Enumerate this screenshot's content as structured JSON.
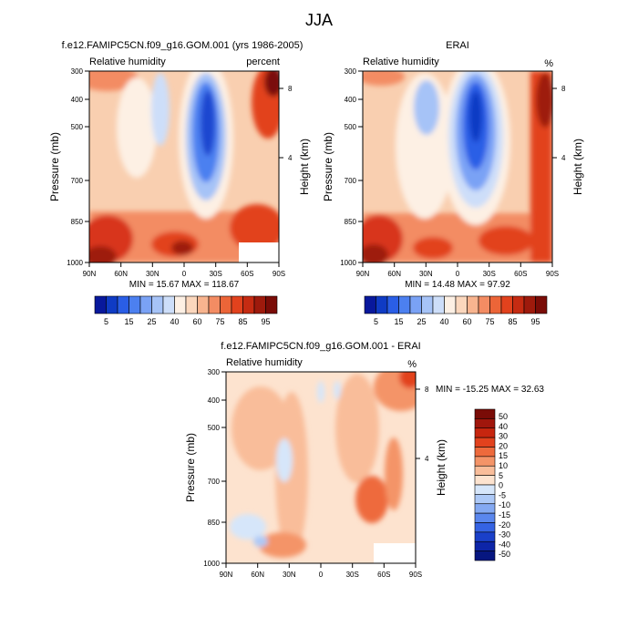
{
  "figure_title": "JJA",
  "chart_data": [
    {
      "type": "heatmap",
      "title": "f.e12.FAMIPC5CN.f09_g16.GOM.001 (yrs 1986-2005)",
      "left_label": "Relative humidity",
      "right_label": "percent",
      "ylabel": "Pressure (mb)",
      "ylabel_right": "Height (km)",
      "x_ticks": [
        "90N",
        "60N",
        "30N",
        "0",
        "30S",
        "60S",
        "90S"
      ],
      "y_ticks": [
        "300",
        "400",
        "500",
        "700",
        "850",
        "1000"
      ],
      "y_values": [
        300,
        400,
        500,
        700,
        850,
        1000
      ],
      "ylim": [
        300,
        1000
      ],
      "height_ticks": [
        "8",
        "4"
      ],
      "height_values": [
        8,
        4
      ],
      "min_max_text": "MIN = 15.67  MAX = 118.67",
      "min": 15.67,
      "max": 118.67,
      "colorbar_labels": [
        "5",
        "15",
        "25",
        "40",
        "60",
        "75",
        "85",
        "95"
      ],
      "colorbar_colors": [
        "#08189c",
        "#0f3bc4",
        "#2a5ee6",
        "#4c80f0",
        "#7aa2f5",
        "#a6c3f7",
        "#cddef9",
        "#fdf0e4",
        "#fbd7bd",
        "#f8b48f",
        "#f38c63",
        "#ec6538",
        "#e2421d",
        "#c52b12",
        "#9e1a0c",
        "#7a0c07"
      ]
    },
    {
      "type": "heatmap",
      "title": "ERAI",
      "left_label": "Relative humidity",
      "right_label": "%",
      "ylabel": "Pressure (mb)",
      "ylabel_right": "Height (km)",
      "x_ticks": [
        "90N",
        "60N",
        "30N",
        "0",
        "30S",
        "60S",
        "90S"
      ],
      "y_ticks": [
        "300",
        "400",
        "500",
        "700",
        "850",
        "1000"
      ],
      "y_values": [
        300,
        400,
        500,
        700,
        850,
        1000
      ],
      "ylim": [
        300,
        1000
      ],
      "height_ticks": [
        "8",
        "4"
      ],
      "height_values": [
        8,
        4
      ],
      "min_max_text": "MIN = 14.48  MAX = 97.92",
      "min": 14.48,
      "max": 97.92,
      "colorbar_labels": [
        "5",
        "15",
        "25",
        "40",
        "60",
        "75",
        "85",
        "95"
      ],
      "colorbar_colors": [
        "#08189c",
        "#0f3bc4",
        "#2a5ee6",
        "#4c80f0",
        "#7aa2f5",
        "#a6c3f7",
        "#cddef9",
        "#fdf0e4",
        "#fbd7bd",
        "#f8b48f",
        "#f38c63",
        "#ec6538",
        "#e2421d",
        "#c52b12",
        "#9e1a0c",
        "#7a0c07"
      ]
    },
    {
      "type": "heatmap",
      "title": "f.e12.FAMIPC5CN.f09_g16.GOM.001 - ERAI",
      "left_label": "Relative humidity",
      "right_label": "%",
      "ylabel": "Pressure (mb)",
      "ylabel_right": "Height (km)",
      "x_ticks": [
        "90N",
        "60N",
        "30N",
        "0",
        "30S",
        "60S",
        "90S"
      ],
      "y_ticks": [
        "300",
        "400",
        "500",
        "700",
        "850",
        "1000"
      ],
      "y_values": [
        300,
        400,
        500,
        700,
        850,
        1000
      ],
      "ylim": [
        300,
        1000
      ],
      "height_ticks": [
        "8",
        "4"
      ],
      "height_values": [
        8,
        4
      ],
      "min_max_text": "MIN = -15.25  MAX =  32.63",
      "min": -15.25,
      "max": 32.63,
      "colorbar_labels": [
        "50",
        "40",
        "30",
        "20",
        "15",
        "10",
        "5",
        "0",
        "-5",
        "-10",
        "-15",
        "-20",
        "-30",
        "-40",
        "-50"
      ],
      "colorbar_colors": [
        "#7a0c07",
        "#a0160c",
        "#c7260f",
        "#e2421d",
        "#ee6a3c",
        "#f49468",
        "#f9bd9a",
        "#fde3cf",
        "#d6e6fa",
        "#adc9f7",
        "#84a9f2",
        "#5a87ee",
        "#3563e3",
        "#1a40c9",
        "#0d25a8",
        "#061680"
      ]
    }
  ]
}
